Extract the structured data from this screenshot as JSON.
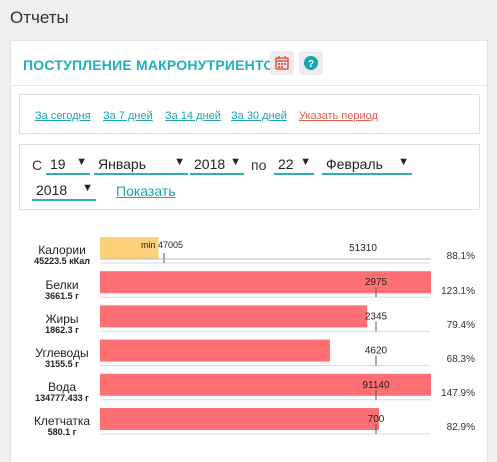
{
  "page": {
    "title": "Отчеты"
  },
  "card": {
    "title": "ПОСТУПЛЕНИЕ МАКРОНУТРИЕНТОВ",
    "calendar_icon": "calendar-icon",
    "help_icon": "question-circle-icon"
  },
  "periods": {
    "today": "За сегодня",
    "week": "За 7 дней",
    "two_weeks": "За 14 дней",
    "month": "За 30 дней",
    "custom": "Указать период"
  },
  "date_range": {
    "from_label": "С",
    "to_label": "по",
    "from_day": "19",
    "from_month": "Январь",
    "from_year": "2018",
    "to_day": "22",
    "to_month": "Февраль",
    "to_year": "2018",
    "arrow": "▼",
    "show": "Показать"
  },
  "colors": {
    "accent": "#20b0b8",
    "bar_over_under": "#fd6f73",
    "bar_min": "#fdd07a",
    "link_custom": "#e05e4e"
  },
  "chart_data": {
    "type": "bar",
    "orientation": "horizontal",
    "categories": [
      "Калории",
      "Белки",
      "Жиры",
      "Углеводы",
      "Вода",
      "Клетчатка"
    ],
    "amounts": [
      "45223.5 кКал",
      "3661.5 г",
      "1862.3 г",
      "3155.5 г",
      "134777.433 г",
      "580.1 г"
    ],
    "values": [
      45223.5,
      3661.5,
      1862.3,
      3155.5,
      134777.433,
      580.1
    ],
    "norms": [
      51310,
      2975,
      2345,
      4620,
      91140,
      700
    ],
    "norm_labels": [
      "51310",
      "2975",
      "2345",
      "4620",
      "91140",
      "700"
    ],
    "percents": [
      "88.1%",
      "123.1%",
      "79.4%",
      "68.3%",
      "147.9%",
      "82.9%"
    ],
    "percent_values": [
      88.1,
      123.1,
      79.4,
      68.3,
      147.9,
      82.9
    ],
    "min_label": "min",
    "min_value_label": "47005",
    "min_values": [
      47005,
      null,
      null,
      null,
      null,
      null
    ]
  }
}
